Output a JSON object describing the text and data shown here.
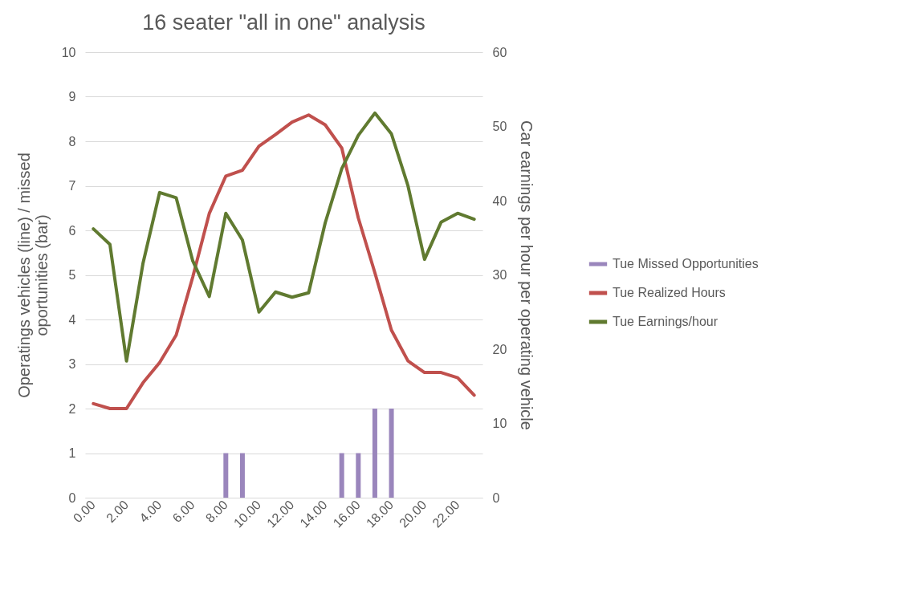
{
  "chart_data": {
    "type": "line",
    "title": "16 seater \"all in one\" analysis",
    "ylabel": "Operatings vehicles (line) / missed oportunities (bar)",
    "y2label": "Car earnings per hour per operating vehicle",
    "categories": [
      "0.00",
      null,
      "2.00",
      null,
      "4.00",
      null,
      "6.00",
      null,
      "8.00",
      null,
      "10.00",
      null,
      "12.00",
      null,
      "14.00",
      null,
      "16.00",
      null,
      "18.00",
      null,
      "20.00",
      null,
      "22.00",
      null
    ],
    "ylim": [
      0,
      10
    ],
    "yticks": [
      0,
      1,
      2,
      3,
      4,
      5,
      6,
      7,
      8,
      9,
      10
    ],
    "y2lim": [
      0,
      60
    ],
    "y2ticks": [
      0,
      10,
      20,
      30,
      40,
      50,
      60
    ],
    "grid": "y",
    "legend": "right",
    "marker": "none",
    "line_style": "solid",
    "series": [
      {
        "name": "Tue Missed Opportunities",
        "type": "bar",
        "color": "#9a86bc",
        "values": [
          0,
          0,
          0,
          0,
          0,
          0,
          0,
          0,
          1,
          1,
          0,
          0,
          0,
          0,
          0,
          1,
          1,
          2,
          2,
          0,
          0,
          0,
          0,
          0
        ]
      },
      {
        "name": "Tue Realized Hours",
        "color": "#c0504d",
        "values": [
          2.11,
          2.0,
          2.0,
          2.58,
          3.03,
          3.65,
          4.95,
          6.38,
          7.22,
          7.35,
          7.89,
          8.15,
          8.43,
          8.59,
          8.37,
          7.85,
          6.28,
          5.05,
          3.76,
          3.07,
          2.81,
          2.81,
          2.69,
          2.3
        ]
      },
      {
        "name": "Tue Earnings/hour",
        "axis": "y2",
        "color": "#607a30",
        "values": [
          36.2,
          34.1,
          18.4,
          31.6,
          41.1,
          40.4,
          31.9,
          27.1,
          38.3,
          34.7,
          25.0,
          27.7,
          27.0,
          27.6,
          37.0,
          44.3,
          48.8,
          51.8,
          49.0,
          42.0,
          32.1,
          37.1,
          38.3,
          37.5
        ]
      }
    ]
  }
}
